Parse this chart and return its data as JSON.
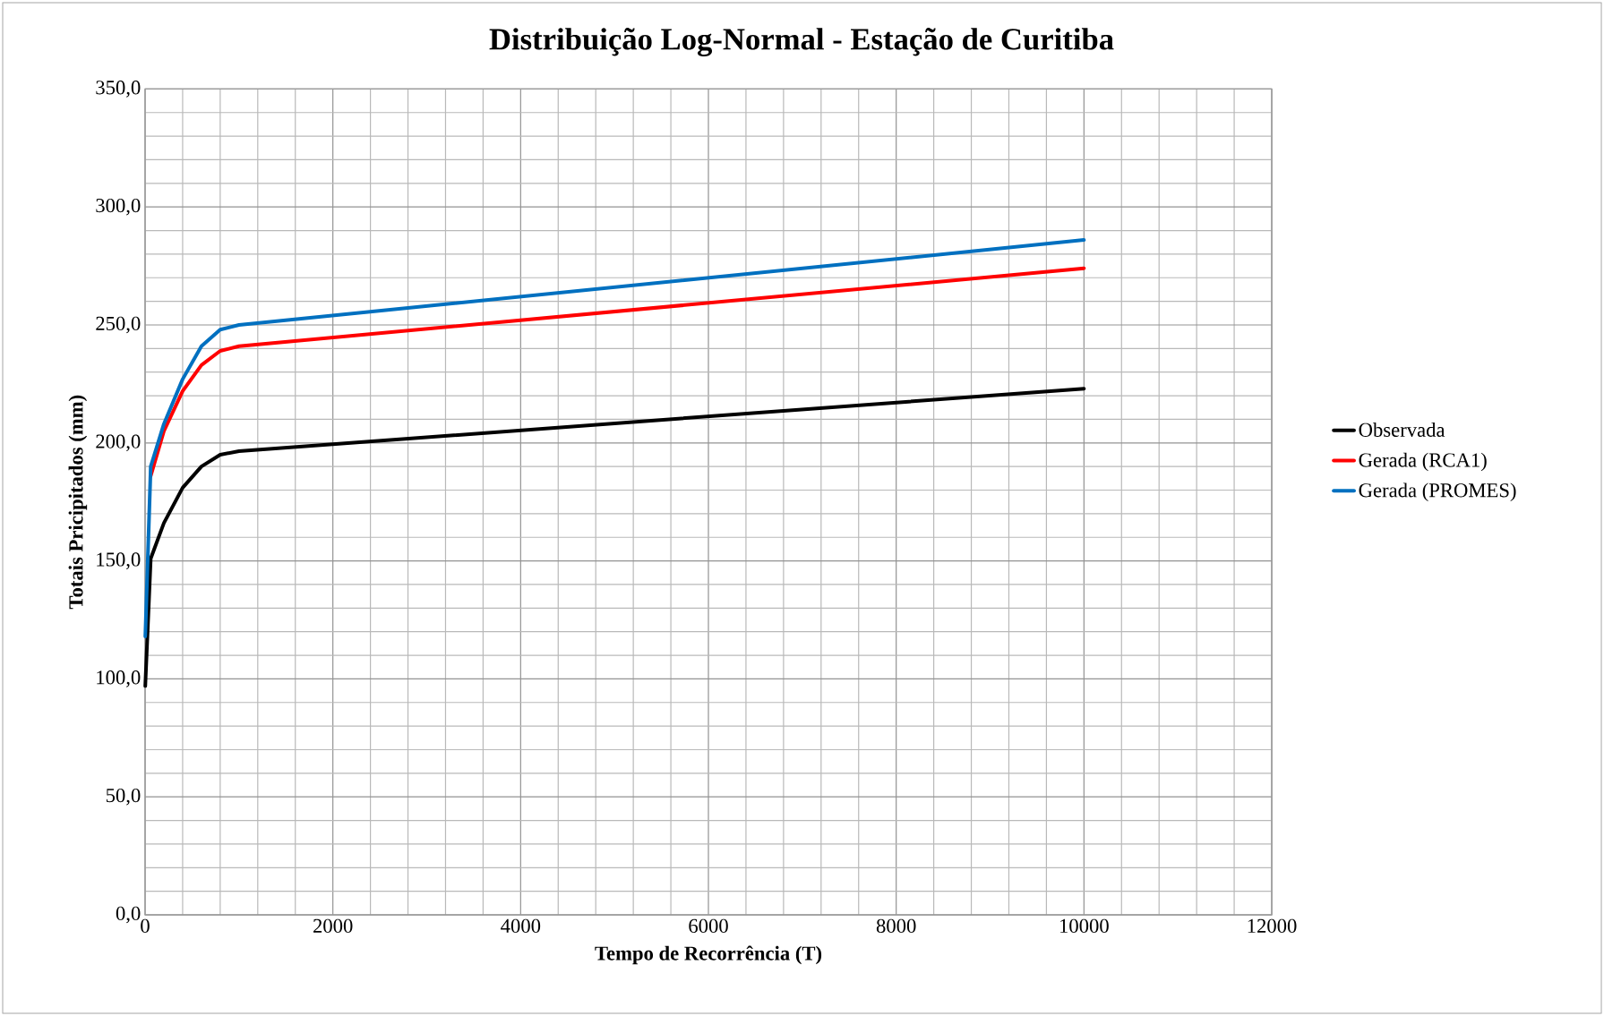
{
  "chart_data": {
    "type": "line",
    "title": "Distribuição Log-Normal - Estação de Curitiba",
    "xlabel": "Tempo de Recorrência (T)",
    "ylabel": "Totais Pricipitados (mm)",
    "series": [
      {
        "name": "Observada",
        "color": "#000000",
        "x": [
          2,
          60,
          200,
          400,
          600,
          800,
          1000,
          10000
        ],
        "values": [
          97,
          151,
          166,
          181,
          190,
          195,
          196.5,
          223
        ]
      },
      {
        "name": "Gerada (RCA1)",
        "color": "#ff0000",
        "x": [
          60,
          200,
          400,
          600,
          800,
          1000,
          10000
        ],
        "values": [
          186,
          205,
          222,
          233,
          239,
          241,
          274
        ]
      },
      {
        "name": "Gerada (PROMES)",
        "color": "#0070c0",
        "x": [
          2,
          60,
          200,
          400,
          600,
          800,
          1000,
          10000
        ],
        "values": [
          118,
          190,
          208,
          227,
          241,
          248,
          250,
          286
        ]
      }
    ],
    "xlim": [
      0,
      12000
    ],
    "xticks": [
      0,
      2000,
      4000,
      6000,
      8000,
      10000,
      12000
    ],
    "ylim": [
      0,
      350
    ],
    "yticks": [
      {
        "value": 0,
        "label": "0,0"
      },
      {
        "value": 50,
        "label": "50,0"
      },
      {
        "value": 100,
        "label": "100,0"
      },
      {
        "value": 150,
        "label": "150,0"
      },
      {
        "value": 200,
        "label": "200,0"
      },
      {
        "value": 250,
        "label": "250,0"
      },
      {
        "value": 300,
        "label": "300,0"
      },
      {
        "value": 350,
        "label": "350,0"
      }
    ],
    "grid": true,
    "legend": "right",
    "line_style": "solid",
    "marker": "none"
  }
}
